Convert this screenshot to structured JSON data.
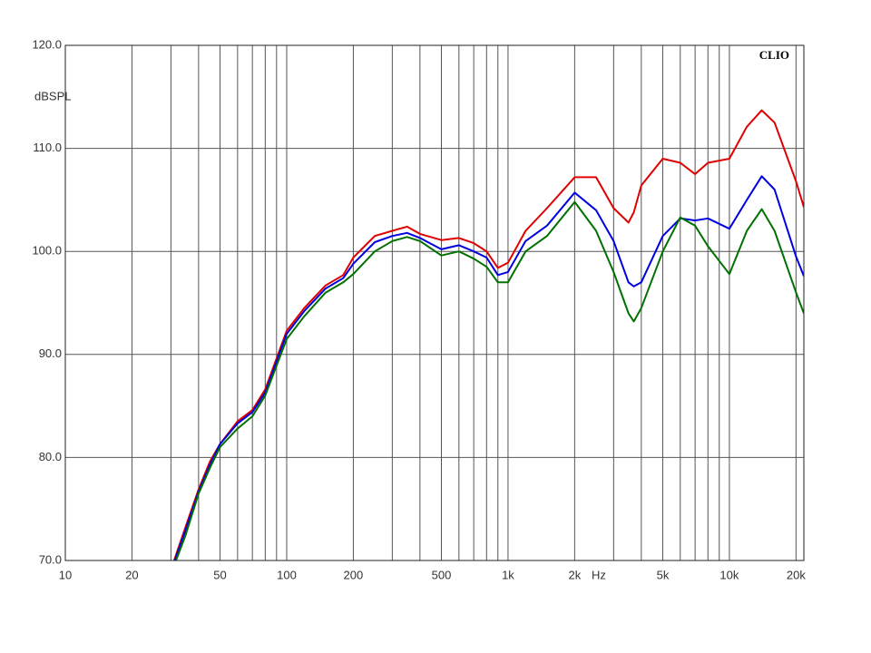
{
  "chart_data": {
    "type": "line",
    "annotation": "CLIO",
    "y_label": "dBSPL",
    "x_label": "Hz",
    "log_x": true,
    "grid": true,
    "xlim": [
      10,
      21700
    ],
    "ylim": [
      70,
      120
    ],
    "xticks": [
      10,
      20,
      50,
      100,
      200,
      500,
      {
        "value": 1000,
        "label": "1k"
      },
      {
        "value": 2000,
        "label": "2k"
      },
      {
        "value": 5000,
        "label": "5k"
      },
      {
        "value": 10000,
        "label": "10k"
      },
      {
        "value": 20000,
        "label": "20k"
      }
    ],
    "xminor": [
      30,
      40,
      60,
      70,
      80,
      90,
      300,
      400,
      600,
      700,
      800,
      900,
      3000,
      4000,
      6000,
      7000,
      8000,
      9000
    ],
    "yticks": [
      {
        "value": 70,
        "label": "70.0"
      },
      {
        "value": 80,
        "label": "80.0"
      },
      {
        "value": 90,
        "label": "90.0"
      },
      {
        "value": 100,
        "label": "100.0"
      },
      {
        "value": 110,
        "label": "110.0"
      },
      {
        "value": 120,
        "label": "120.0"
      }
    ],
    "x": [
      31,
      35,
      40,
      45,
      50,
      60,
      70,
      80,
      100,
      120,
      150,
      180,
      200,
      250,
      300,
      350,
      400,
      500,
      600,
      700,
      800,
      900,
      1000,
      1200,
      1500,
      2000,
      2500,
      3000,
      3500,
      3700,
      4000,
      5000,
      6000,
      7000,
      8000,
      10000,
      12000,
      14000,
      16000,
      20000,
      21700
    ],
    "series": [
      {
        "color": "#e00000",
        "values": [
          70,
          73.3,
          76.9,
          79.6,
          81.3,
          83.5,
          84.6,
          86.6,
          92.3,
          94.5,
          96.7,
          97.7,
          99.4,
          101.5,
          102,
          102.4,
          101.7,
          101.1,
          101.3,
          100.8,
          100,
          98.4,
          98.9,
          102,
          104.2,
          107.2,
          107.2,
          104.2,
          102.8,
          103.8,
          106.4,
          109,
          108.6,
          107.5,
          108.6,
          109,
          112.1,
          113.7,
          112.5,
          106.8,
          104.3
        ]
      },
      {
        "color": "#0000e0",
        "values": [
          69.8,
          73,
          76.7,
          79.3,
          81.3,
          83.3,
          84.4,
          86.3,
          92,
          94.2,
          96.4,
          97.4,
          98.8,
          100.9,
          101.5,
          101.8,
          101.3,
          100.2,
          100.6,
          100,
          99.4,
          97.7,
          98,
          101,
          102.5,
          105.7,
          104,
          101,
          97,
          96.6,
          97,
          101.5,
          103.2,
          103,
          103.2,
          102.2,
          105,
          107.3,
          106,
          99.5,
          97.6
        ]
      },
      {
        "color": "#007000",
        "values": [
          69.5,
          72.5,
          76.5,
          79,
          81,
          82.8,
          84,
          86,
          91.5,
          93.7,
          96,
          97,
          97.8,
          100,
          101,
          101.4,
          101,
          99.6,
          100,
          99.3,
          98.5,
          97,
          97,
          100,
          101.5,
          104.8,
          102,
          98,
          94,
          93.2,
          94.5,
          100,
          103.3,
          102.5,
          100.5,
          97.8,
          102,
          104.1,
          102,
          96,
          94
        ]
      }
    ]
  }
}
